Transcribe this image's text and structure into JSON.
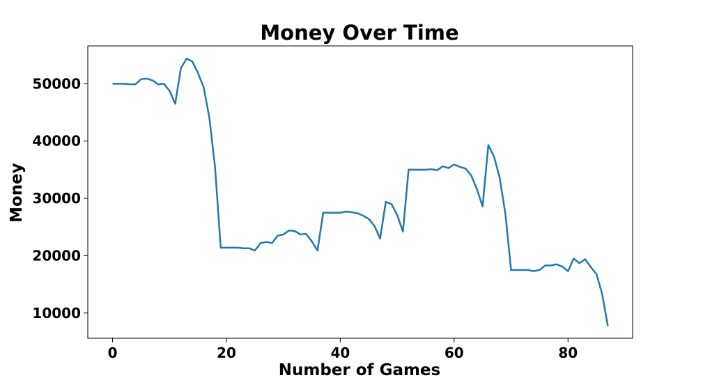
{
  "chart_data": {
    "type": "line",
    "title": "Money Over Time",
    "xlabel": "Number of Games",
    "ylabel": "Money",
    "xlim": [
      -4.35,
      91.35
    ],
    "ylim": [
      5600,
      56600
    ],
    "xticks": [
      0,
      20,
      40,
      60,
      80
    ],
    "yticks": [
      10000,
      20000,
      30000,
      40000,
      50000
    ],
    "grid": false,
    "legend": "none",
    "line_color": "#1f77b4",
    "series": [
      {
        "x": [
          0,
          1,
          2,
          3,
          4,
          5,
          6,
          7,
          8,
          9,
          10,
          11,
          12,
          13,
          14,
          15,
          16,
          17,
          18,
          19,
          20,
          21,
          22,
          23,
          24,
          25,
          26,
          27,
          28,
          29,
          30,
          31,
          32,
          33,
          34,
          35,
          36,
          37,
          38,
          39,
          40,
          41,
          42,
          43,
          44,
          45,
          46,
          47,
          48,
          49,
          50,
          51,
          52,
          53,
          54,
          55,
          56,
          57,
          58,
          59,
          60,
          61,
          62,
          63,
          64,
          65,
          66,
          67,
          68,
          69,
          70,
          71,
          72,
          73,
          74,
          75,
          76,
          77,
          78,
          79,
          80,
          81,
          82,
          83,
          84,
          85,
          86,
          87
        ],
        "y": [
          50000,
          50000,
          50000,
          49900,
          49900,
          50800,
          50900,
          50600,
          49900,
          50000,
          48800,
          46500,
          52700,
          54400,
          53900,
          51900,
          49400,
          44100,
          35500,
          21400,
          21400,
          21400,
          21400,
          21300,
          21300,
          20900,
          22200,
          22400,
          22200,
          23500,
          23700,
          24400,
          24300,
          23700,
          23800,
          22500,
          20900,
          27500,
          27500,
          27500,
          27500,
          27700,
          27600,
          27400,
          27000,
          26400,
          25200,
          23000,
          29400,
          29000,
          27100,
          24200,
          35000,
          35000,
          35000,
          35000,
          35100,
          34900,
          35600,
          35300,
          35900,
          35500,
          35200,
          34000,
          31600,
          28600,
          39300,
          37300,
          33600,
          27300,
          17500,
          17500,
          17500,
          17500,
          17300,
          17500,
          18300,
          18300,
          18500,
          18100,
          17300,
          19500,
          18700,
          19400,
          18000,
          16800,
          13300,
          7700
        ]
      }
    ]
  }
}
